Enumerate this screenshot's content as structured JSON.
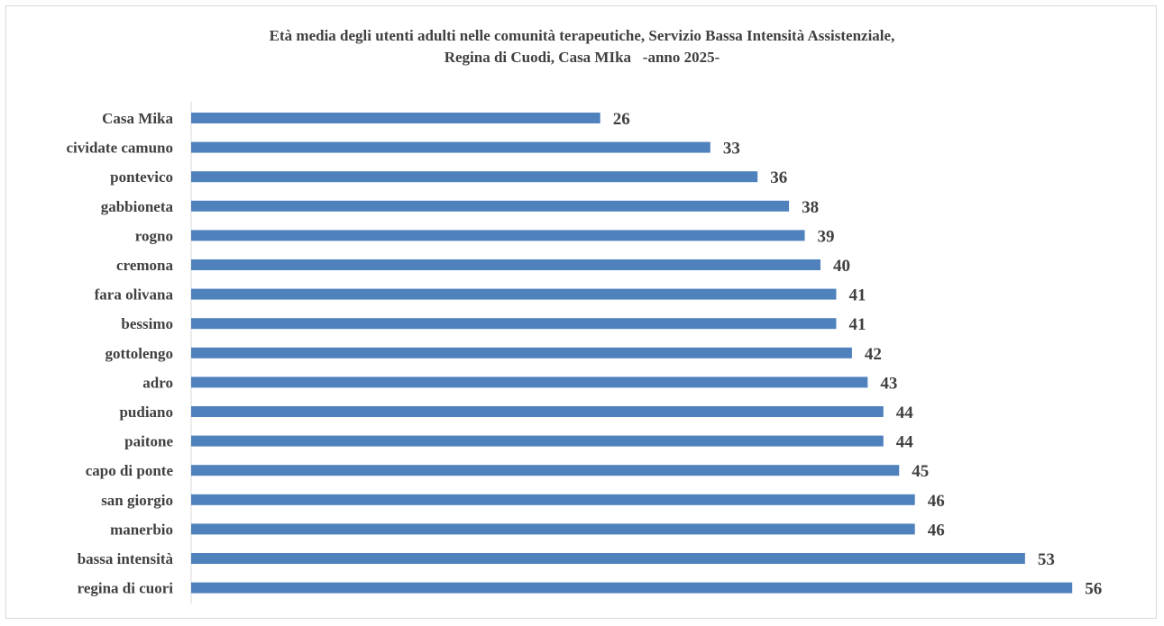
{
  "chart_data": {
    "type": "bar",
    "orientation": "horizontal",
    "title_lines": [
      "Età media degli utenti adulti nelle comunità terapeutiche, Servizio Bassa Intensità Assistenziale,",
      "Regina di Cuodi, Casa MIka   -anno 2025-"
    ],
    "categories": [
      "Casa Mika",
      "cividate camuno",
      "pontevico",
      "gabbioneta",
      "rogno",
      "cremona",
      "fara olivana",
      "bessimo",
      "gottolengo",
      "adro",
      "pudiano",
      "paitone",
      "capo di ponte",
      "san giorgio",
      "manerbio",
      "bassa intensità",
      "regina di cuori"
    ],
    "values": [
      26,
      33,
      36,
      38,
      39,
      40,
      41,
      41,
      42,
      43,
      44,
      44,
      45,
      46,
      46,
      53,
      56
    ],
    "data_labels": true,
    "xlim": [
      0,
      60
    ],
    "grid": false,
    "legend": "none",
    "bar_color": "#4f81bd"
  }
}
